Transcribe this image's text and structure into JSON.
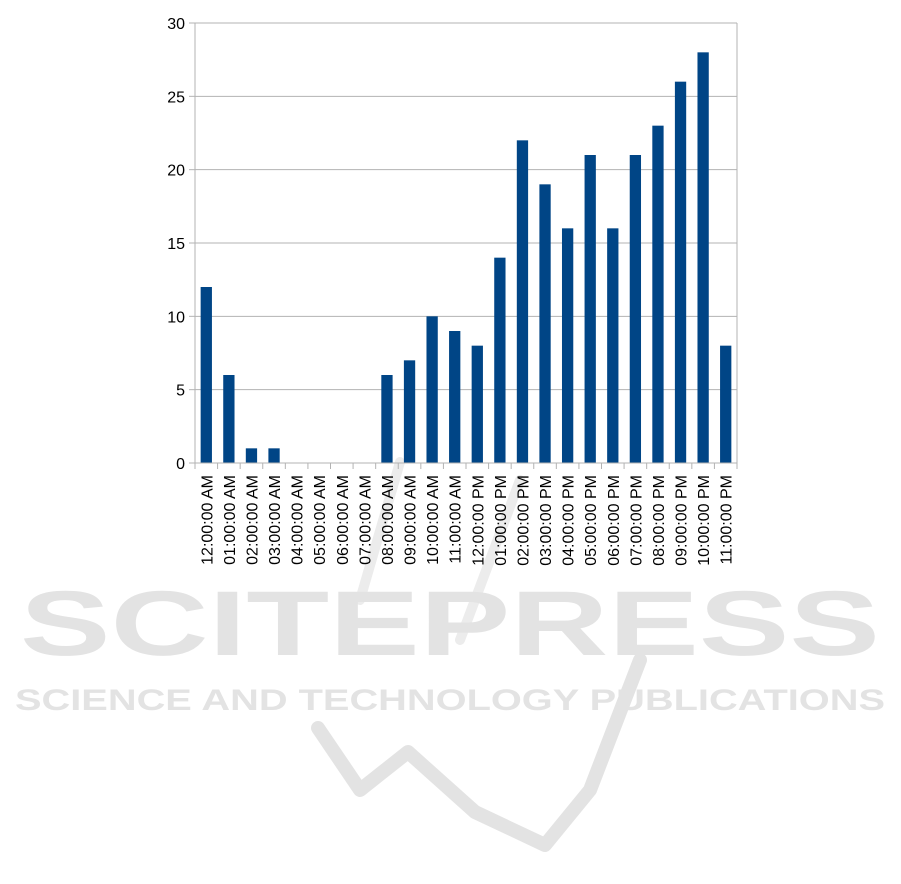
{
  "watermark": {
    "brand": "SCITEPRESS",
    "tagline": "SCIENCE AND TECHNOLOGY PUBLICATIONS"
  },
  "colors": {
    "bar": "#004586",
    "grid": "#b3b3b3",
    "axis": "#b3b3b3",
    "watermark": "#e3e3e3"
  },
  "chart_data": {
    "type": "bar",
    "title": "",
    "xlabel": "",
    "ylabel": "",
    "ylim": [
      0,
      30
    ],
    "yticks": [
      0,
      5,
      10,
      15,
      20,
      25,
      30
    ],
    "grid": true,
    "legend": "none",
    "categories": [
      "12:00:00 AM",
      "01:00:00 AM",
      "02:00:00 AM",
      "03:00:00 AM",
      "04:00:00 AM",
      "05:00:00 AM",
      "06:00:00 AM",
      "07:00:00 AM",
      "08:00:00 AM",
      "09:00:00 AM",
      "10:00:00 AM",
      "11:00:00 AM",
      "12:00:00 PM",
      "01:00:00 PM",
      "02:00:00 PM",
      "03:00:00 PM",
      "04:00:00 PM",
      "05:00:00 PM",
      "06:00:00 PM",
      "07:00:00 PM",
      "08:00:00 PM",
      "09:00:00 PM",
      "10:00:00 PM",
      "11:00:00 PM"
    ],
    "values": [
      12,
      6,
      1,
      1,
      0,
      0,
      0,
      0,
      6,
      7,
      10,
      9,
      8,
      14,
      22,
      19,
      16,
      21,
      16,
      21,
      23,
      26,
      28,
      8
    ]
  }
}
